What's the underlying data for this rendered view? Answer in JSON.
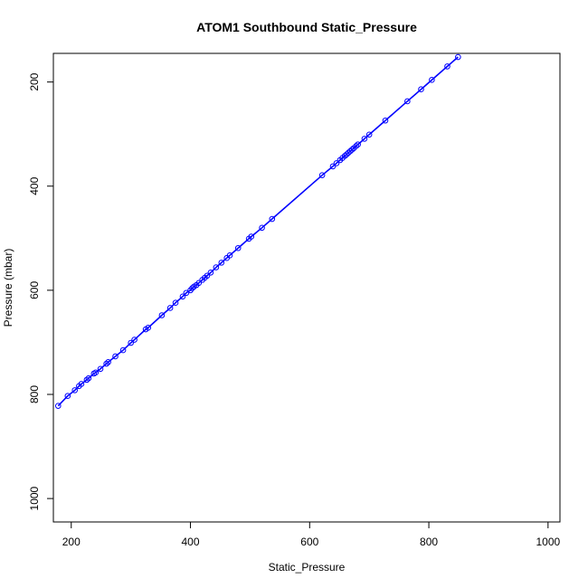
{
  "chart_data": {
    "type": "scatter",
    "title": "ATOM1 Southbound Static_Pressure",
    "xlabel": "Static_Pressure",
    "ylabel": "Pressure (mbar)",
    "xlim": [
      170,
      1020
    ],
    "ylim": [
      1045,
      145
    ],
    "y_reversed": true,
    "grid": false,
    "legend": "none",
    "color": "#0000ff",
    "x_ticks": [
      200,
      400,
      600,
      800,
      1000
    ],
    "y_ticks": [
      200,
      400,
      600,
      800,
      1000
    ],
    "series": [
      {
        "marker": "open-circle",
        "line": true,
        "x": [
          178,
          194,
          206,
          213,
          217,
          226,
          229,
          238,
          241,
          249,
          259,
          262,
          274,
          287,
          300,
          306,
          325,
          329,
          352,
          366,
          375,
          387,
          393,
          400,
          403,
          406,
          410,
          414,
          420,
          424,
          428,
          434,
          443,
          452,
          461,
          466,
          480,
          498,
          502,
          520,
          537,
          621,
          639,
          645,
          651,
          655,
          659,
          662,
          665,
          668,
          671,
          674,
          678,
          681,
          692,
          700,
          727,
          764,
          787,
          805,
          831,
          849
        ],
        "y": [
          822,
          803,
          792,
          784,
          780,
          772,
          769,
          760,
          758,
          751,
          741,
          738,
          727,
          715,
          701,
          695,
          675,
          672,
          648,
          634,
          624,
          612,
          605,
          600,
          596,
          593,
          590,
          586,
          580,
          576,
          572,
          566,
          556,
          547,
          538,
          533,
          519,
          501,
          497,
          480,
          463,
          379,
          362,
          356,
          350,
          346,
          342,
          339,
          336,
          333,
          330,
          327,
          323,
          320,
          309,
          301,
          274,
          237,
          214,
          196,
          170,
          152
        ]
      }
    ]
  }
}
